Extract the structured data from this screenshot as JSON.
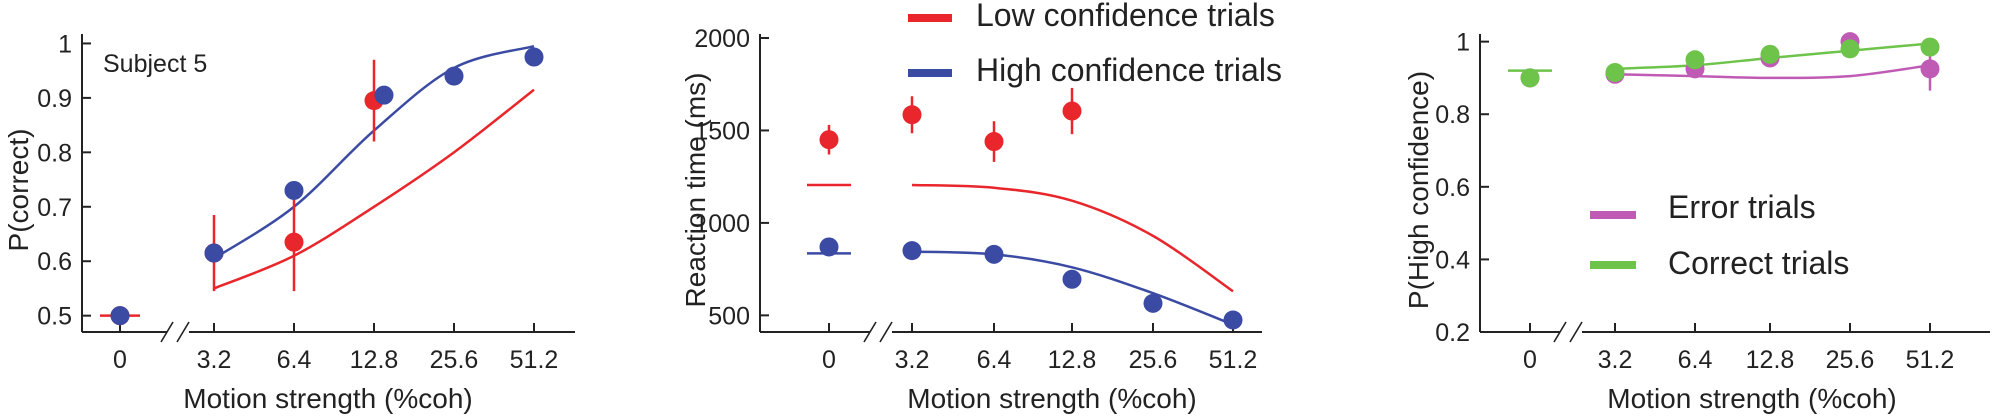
{
  "chart_data": [
    {
      "id": "accuracy",
      "type": "scatter",
      "annotation": "Subject 5",
      "ylabel": "P(correct)",
      "xlabel": "Motion strength (%coh)",
      "x_tick_labels": [
        "0",
        "3.2",
        "6.4",
        "12.8",
        "25.6",
        "51.2"
      ],
      "x_values": [
        0,
        3.2,
        6.4,
        12.8,
        25.6,
        51.2
      ],
      "y_tick_labels": [
        "0.5",
        "0.6",
        "0.7",
        "0.8",
        "0.9",
        "1"
      ],
      "y_ticks": [
        0.5,
        0.6,
        0.7,
        0.8,
        0.9,
        1.0
      ],
      "ylim": [
        0.47,
        1.01
      ],
      "series": [
        {
          "name": "Low confidence trials",
          "color": "#e8262b",
          "points": [
            {
              "x": 0,
              "y": 0.5,
              "err": 0
            },
            {
              "x": 3.2,
              "y": 0.615,
              "err": 0.07
            },
            {
              "x": 6.4,
              "y": 0.635,
              "err": 0.09
            },
            {
              "x": 12.8,
              "y": 0.895,
              "err": 0.075
            }
          ],
          "fit": [
            [
              3.2,
              0.55
            ],
            [
              6.4,
              0.61
            ],
            [
              12.8,
              0.7
            ],
            [
              25.6,
              0.8
            ],
            [
              51.2,
              0.915
            ]
          ]
        },
        {
          "name": "High confidence trials",
          "color": "#3b4ba4",
          "points": [
            {
              "x": 0,
              "y": 0.5,
              "err": 0
            },
            {
              "x": 3.2,
              "y": 0.615,
              "err": 0
            },
            {
              "x": 6.4,
              "y": 0.73,
              "err": 0
            },
            {
              "x": 12.8,
              "y": 0.905,
              "err": 0
            },
            {
              "x": 25.6,
              "y": 0.94,
              "err": 0
            },
            {
              "x": 51.2,
              "y": 0.975,
              "err": 0
            }
          ],
          "fit": [
            [
              3.2,
              0.605
            ],
            [
              6.4,
              0.7
            ],
            [
              12.8,
              0.84
            ],
            [
              25.6,
              0.955
            ],
            [
              51.2,
              0.995
            ]
          ]
        }
      ],
      "chance_line": {
        "y": 0.5,
        "color": "#e8262b"
      }
    },
    {
      "id": "reaction_time",
      "type": "scatter",
      "ylabel": "Reaction time (ms)",
      "xlabel": "Motion strength (%coh)",
      "x_tick_labels": [
        "0",
        "3.2",
        "6.4",
        "12.8",
        "25.6",
        "51.2"
      ],
      "x_values": [
        0,
        3.2,
        6.4,
        12.8,
        25.6,
        51.2
      ],
      "y_tick_labels": [
        "500",
        "1000",
        "1500",
        "2000"
      ],
      "y_ticks": [
        500,
        1000,
        1500,
        2000
      ],
      "ylim": [
        410,
        2000
      ],
      "legend": [
        {
          "label": "Low confidence trials",
          "color": "#e8262b"
        },
        {
          "label": "High confidence trials",
          "color": "#3b4ba4"
        }
      ],
      "series": [
        {
          "name": "Low confidence trials",
          "color": "#e8262b",
          "points": [
            {
              "x": 0,
              "y": 1450,
              "err": 80
            },
            {
              "x": 3.2,
              "y": 1585,
              "err": 100
            },
            {
              "x": 6.4,
              "y": 1440,
              "err": 110
            },
            {
              "x": 12.8,
              "y": 1605,
              "err": 125
            }
          ],
          "zero_fit": 1205,
          "fit": [
            [
              3.2,
              1205
            ],
            [
              6.4,
              1190
            ],
            [
              12.8,
              1120
            ],
            [
              25.6,
              930
            ],
            [
              51.2,
              630
            ]
          ]
        },
        {
          "name": "High confidence trials",
          "color": "#3b4ba4",
          "points": [
            {
              "x": 0,
              "y": 870,
              "err": 0
            },
            {
              "x": 3.2,
              "y": 850,
              "err": 0
            },
            {
              "x": 6.4,
              "y": 830,
              "err": 0
            },
            {
              "x": 12.8,
              "y": 695,
              "err": 0
            },
            {
              "x": 25.6,
              "y": 565,
              "err": 0
            },
            {
              "x": 51.2,
              "y": 475,
              "err": 0
            }
          ],
          "zero_fit": 835,
          "fit": [
            [
              3.2,
              845
            ],
            [
              6.4,
              830
            ],
            [
              12.8,
              760
            ],
            [
              25.6,
              620
            ],
            [
              51.2,
              450
            ]
          ]
        }
      ]
    },
    {
      "id": "confidence",
      "type": "scatter",
      "ylabel": "P(High confidence)",
      "xlabel": "Motion strength (%coh)",
      "x_tick_labels": [
        "0",
        "3.2",
        "6.4",
        "12.8",
        "25.6",
        "51.2"
      ],
      "x_values": [
        0,
        3.2,
        6.4,
        12.8,
        25.6,
        51.2
      ],
      "y_tick_labels": [
        "0.2",
        "0.4",
        "0.6",
        "0.8",
        "1"
      ],
      "y_ticks": [
        0.2,
        0.4,
        0.6,
        0.8,
        1.0
      ],
      "ylim": [
        0.2,
        1.01
      ],
      "legend": [
        {
          "label": "Error trials",
          "color": "#c05bb5"
        },
        {
          "label": "Correct trials",
          "color": "#6ec44a"
        }
      ],
      "series": [
        {
          "name": "Error trials",
          "color": "#c05bb5",
          "points": [
            {
              "x": 0,
              "y": 0.9,
              "err": 0
            },
            {
              "x": 3.2,
              "y": 0.91,
              "err": 0
            },
            {
              "x": 6.4,
              "y": 0.925,
              "err": 0
            },
            {
              "x": 12.8,
              "y": 0.955,
              "err": 0.02
            },
            {
              "x": 25.6,
              "y": 1.0,
              "err": 0
            },
            {
              "x": 51.2,
              "y": 0.925,
              "err": 0.06
            }
          ],
          "fit": [
            [
              3.2,
              0.91
            ],
            [
              6.4,
              0.905
            ],
            [
              12.8,
              0.9
            ],
            [
              25.6,
              0.905
            ],
            [
              51.2,
              0.935
            ]
          ]
        },
        {
          "name": "Correct trials",
          "color": "#6ec44a",
          "points": [
            {
              "x": 0,
              "y": 0.9,
              "err": 0
            },
            {
              "x": 3.2,
              "y": 0.915,
              "err": 0
            },
            {
              "x": 6.4,
              "y": 0.95,
              "err": 0
            },
            {
              "x": 12.8,
              "y": 0.965,
              "err": 0
            },
            {
              "x": 25.6,
              "y": 0.98,
              "err": 0
            },
            {
              "x": 51.2,
              "y": 0.985,
              "err": 0
            }
          ],
          "fit": [
            [
              3.2,
              0.925
            ],
            [
              6.4,
              0.935
            ],
            [
              12.8,
              0.955
            ],
            [
              25.6,
              0.975
            ],
            [
              51.2,
              0.995
            ]
          ]
        }
      ],
      "zero_fit": {
        "y": 0.92,
        "color": "#6ec44a"
      }
    }
  ]
}
